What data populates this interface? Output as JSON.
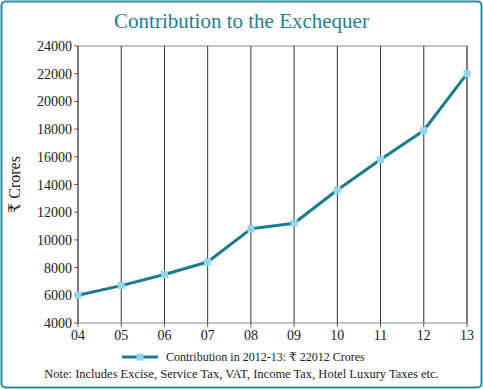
{
  "chart_data": {
    "type": "line",
    "title": "Contribution to the Exchequer",
    "y_label": "₹ Crores",
    "note": "Note: Includes Excise, Service Tax, VAT, Income Tax, Hotel Luxury Taxes etc.",
    "categories": [
      "04",
      "05",
      "06",
      "07",
      "08",
      "09",
      "10",
      "11",
      "12",
      "13"
    ],
    "series": [
      {
        "name": "Contribution in 2012-13: ₹ 22012 Crores",
        "color": "#1b7b8c",
        "marker": "square",
        "values": [
          6000,
          6700,
          7500,
          8400,
          10800,
          11200,
          13600,
          15800,
          17900,
          22012
        ]
      }
    ],
    "ylim": [
      4000,
      24000
    ],
    "yticks": [
      4000,
      6000,
      8000,
      10000,
      12000,
      14000,
      16000,
      18000,
      20000,
      22000,
      24000
    ],
    "grid": "x",
    "legend": "bottom"
  }
}
